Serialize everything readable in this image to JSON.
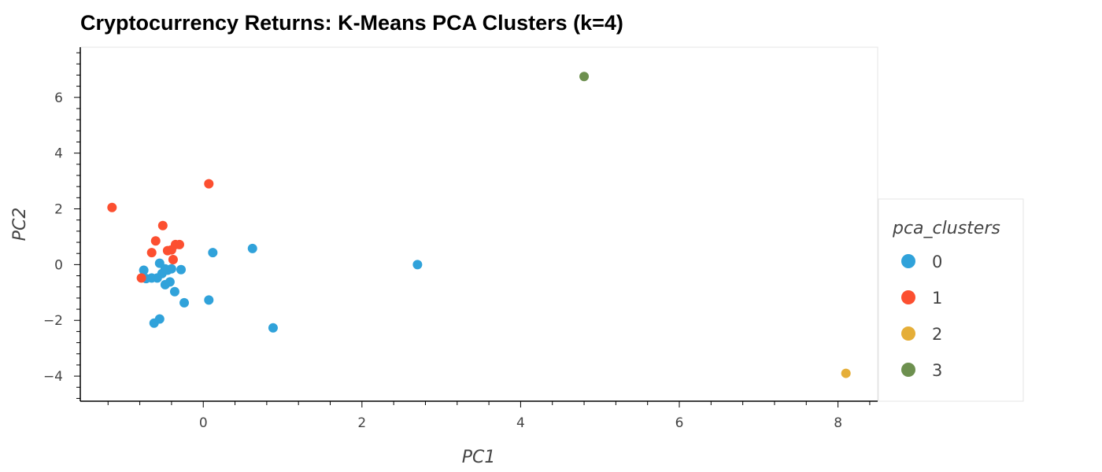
{
  "chart_data": {
    "type": "scatter",
    "title": "Cryptocurrency Returns: K-Means PCA Clusters (k=4)",
    "xlabel": "PC1",
    "ylabel": "PC2",
    "xlim": [
      -1.55,
      8.5
    ],
    "ylim": [
      -4.9,
      7.8
    ],
    "x_ticks": [
      0,
      2,
      4,
      6,
      8
    ],
    "y_ticks": [
      -4,
      -2,
      0,
      2,
      4,
      6
    ],
    "grid": false,
    "legend": {
      "title": "pca_clusters",
      "placement": "right"
    },
    "series": [
      {
        "name": "0",
        "color": "#30a2da",
        "points": [
          [
            -0.75,
            -0.2
          ],
          [
            -0.72,
            -0.5
          ],
          [
            -0.65,
            -0.48
          ],
          [
            -0.58,
            -0.48
          ],
          [
            -0.55,
            0.05
          ],
          [
            -0.52,
            -0.32
          ],
          [
            -0.48,
            -0.15
          ],
          [
            -0.48,
            -0.72
          ],
          [
            -0.45,
            -0.2
          ],
          [
            -0.42,
            -0.62
          ],
          [
            -0.4,
            -0.15
          ],
          [
            -0.36,
            -0.97
          ],
          [
            -0.28,
            -0.18
          ],
          [
            -0.24,
            -1.37
          ],
          [
            -0.62,
            -2.1
          ],
          [
            -0.55,
            -1.95
          ],
          [
            0.07,
            -1.27
          ],
          [
            0.12,
            0.43
          ],
          [
            0.62,
            0.58
          ],
          [
            0.88,
            -2.27
          ],
          [
            2.7,
            0.0
          ]
        ]
      },
      {
        "name": "1",
        "color": "#fc4f30",
        "points": [
          [
            -1.15,
            2.05
          ],
          [
            -0.78,
            -0.48
          ],
          [
            -0.65,
            0.43
          ],
          [
            -0.6,
            0.85
          ],
          [
            -0.51,
            1.4
          ],
          [
            -0.45,
            0.5
          ],
          [
            -0.4,
            0.53
          ],
          [
            -0.38,
            0.18
          ],
          [
            -0.35,
            0.72
          ],
          [
            -0.3,
            0.72
          ],
          [
            0.07,
            2.9
          ]
        ]
      },
      {
        "name": "2",
        "color": "#e5ae38",
        "points": [
          [
            8.1,
            -3.9
          ]
        ]
      },
      {
        "name": "3",
        "color": "#6d904f",
        "points": [
          [
            4.8,
            6.75
          ]
        ]
      }
    ]
  }
}
